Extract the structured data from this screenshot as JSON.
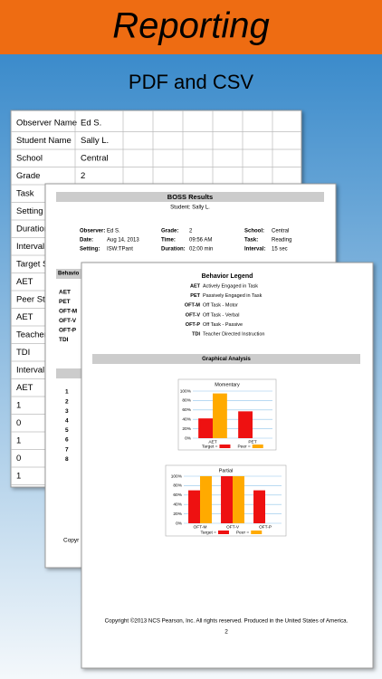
{
  "header": {
    "title": "Reporting",
    "subtitle": "PDF and CSV"
  },
  "table": {
    "rows": [
      [
        "Observer Name",
        "Ed S."
      ],
      [
        "Student Name",
        "Sally L."
      ],
      [
        "School",
        "Central"
      ],
      [
        "Grade",
        "2"
      ],
      [
        "Task"
      ],
      [
        "Setting"
      ],
      [
        "Duration"
      ],
      [
        "Interval"
      ],
      [
        "Target S"
      ],
      [
        "AET"
      ],
      [
        "Peer Sta"
      ],
      [
        "AET"
      ],
      [
        "Teacher"
      ],
      [
        "TDI"
      ],
      [
        "Interval"
      ],
      [
        "AET"
      ],
      [
        "1"
      ],
      [
        "0"
      ],
      [
        "1"
      ],
      [
        "0"
      ],
      [
        "1"
      ]
    ]
  },
  "results": {
    "title": "BOSS Results",
    "student": "Student: Sally L.",
    "fields": [
      [
        {
          "label": "Observer:",
          "value": "Ed S."
        },
        {
          "label": "Grade:",
          "value": "2"
        },
        {
          "label": "School:",
          "value": "Central"
        }
      ],
      [
        {
          "label": "Date:",
          "value": "Aug 14, 2013"
        },
        {
          "label": "Time:",
          "value": "09:56 AM"
        },
        {
          "label": "Task:",
          "value": "Reading"
        }
      ],
      [
        {
          "label": "Setting:",
          "value": "ISW:TPant"
        },
        {
          "label": "Duration:",
          "value": "02:00 min"
        },
        {
          "label": "Interval:",
          "value": "15 sec"
        }
      ]
    ],
    "behavior_heading": "Behavio",
    "codes": [
      "AET",
      "PET",
      "OFT-M",
      "OFT-V",
      "OFT-P",
      "TDI"
    ],
    "numbers": [
      "1",
      "2",
      "3",
      "4",
      "5",
      "6",
      "7",
      "8"
    ],
    "copyright": "Copyr"
  },
  "report": {
    "legend_title": "Behavior Legend",
    "legend": [
      {
        "code": "AET",
        "text": "Actively Engaged in Task"
      },
      {
        "code": "PET",
        "text": "Passively Engaged in Task"
      },
      {
        "code": "OFT-M",
        "text": "Off Task - Motor"
      },
      {
        "code": "OFT-V",
        "text": "Off Task - Verbal"
      },
      {
        "code": "OFT-P",
        "text": "Off Task - Passive"
      },
      {
        "code": "TDI",
        "text": "Teacher Directed Instruction"
      }
    ],
    "section": "Graphical Analysis",
    "charts": [
      {
        "type": "bar",
        "title": "Momentary",
        "categories": [
          "AET",
          "PET"
        ],
        "series": [
          {
            "name": "Target =",
            "color": "#ee1111",
            "values": [
              42,
              57
            ]
          },
          {
            "name": "Peer =",
            "color": "#ffaa00",
            "values": [
              95,
              0
            ]
          }
        ],
        "ylim": [
          0,
          100
        ],
        "yticks": [
          {
            "value": 0,
            "label": "0%"
          },
          {
            "value": 20,
            "label": "20%"
          },
          {
            "value": 40,
            "label": "40%"
          },
          {
            "value": 60,
            "label": "60%"
          },
          {
            "value": 80,
            "label": "80%"
          },
          {
            "value": 100,
            "label": "100%"
          }
        ],
        "grid": true
      },
      {
        "type": "bar",
        "title": "Partial",
        "categories": [
          "OFT-M",
          "OFT-V",
          "OFT-P"
        ],
        "series": [
          {
            "name": "Target =",
            "color": "#ee1111",
            "values": [
              70,
              100,
              70
            ]
          },
          {
            "name": "Peer =",
            "color": "#ffaa00",
            "values": [
              100,
              100,
              0
            ]
          }
        ],
        "ylim": [
          0,
          100
        ],
        "yticks": [
          {
            "value": 0,
            "label": "0%"
          },
          {
            "value": 20,
            "label": "20%"
          },
          {
            "value": 40,
            "label": "40%"
          },
          {
            "value": 60,
            "label": "60%"
          },
          {
            "value": 80,
            "label": "80%"
          },
          {
            "value": 100,
            "label": "100%"
          }
        ],
        "grid": true
      }
    ],
    "copyright": "Copyright ©2013 NCS Pearson, Inc. All rights reserved. Produced in the United States of America.",
    "page": "2"
  }
}
